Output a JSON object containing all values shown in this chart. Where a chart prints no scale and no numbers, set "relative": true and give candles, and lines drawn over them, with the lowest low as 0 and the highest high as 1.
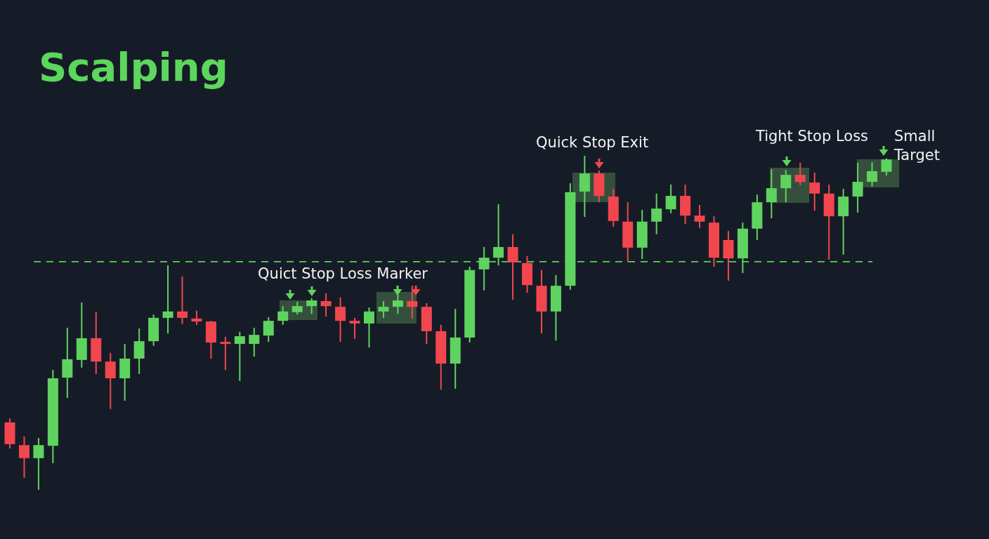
{
  "chart_data": {
    "type": "candlestick",
    "title": "Scalping",
    "relative": true,
    "categories": [
      null,
      null,
      null,
      null,
      null,
      null,
      null,
      null,
      null,
      null,
      null,
      null,
      null,
      null,
      null,
      null,
      null,
      null,
      null,
      null,
      null,
      null,
      null,
      null,
      null,
      null,
      null,
      null,
      null,
      null,
      null,
      null,
      null,
      null,
      null,
      null,
      null,
      null,
      null,
      null,
      null,
      null,
      null,
      null,
      null,
      null,
      null,
      null,
      null,
      null,
      null,
      null,
      null,
      null,
      null,
      null,
      null,
      null,
      null,
      null,
      null,
      null
    ],
    "ohlc": [
      [
        0.202,
        0.214,
        0.124,
        0.137
      ],
      [
        0.134,
        0.16,
        0.036,
        0.095
      ],
      [
        0.095,
        0.155,
        0,
        0.134
      ],
      [
        0.132,
        0.359,
        0.08,
        0.334
      ],
      [
        0.336,
        0.485,
        0.275,
        0.391
      ],
      [
        0.389,
        0.561,
        0.366,
        0.454
      ],
      [
        0.454,
        0.532,
        0.347,
        0.384
      ],
      [
        0.384,
        0.41,
        0.242,
        0.334
      ],
      [
        0.334,
        0.437,
        0.267,
        0.393
      ],
      [
        0.393,
        0.483,
        0.347,
        0.445
      ],
      [
        0.445,
        0.525,
        0.431,
        0.515
      ],
      [
        0.515,
        0.672,
        0.468,
        0.534
      ],
      [
        0.534,
        0.639,
        0.496,
        0.515
      ],
      [
        0.513,
        0.536,
        0.494,
        0.504
      ],
      [
        0.504,
        0.506,
        0.393,
        0.441
      ],
      [
        0.443,
        0.458,
        0.359,
        0.437
      ],
      [
        0.437,
        0.473,
        0.326,
        0.46
      ],
      [
        0.437,
        0.485,
        0.399,
        0.464
      ],
      [
        0.462,
        0.517,
        0.443,
        0.506
      ],
      [
        0.506,
        0.55,
        0.494,
        0.534
      ],
      [
        0.532,
        0.563,
        0.525,
        0.55
      ],
      [
        0.55,
        0.574,
        0.527,
        0.567
      ],
      [
        0.565,
        0.588,
        0.519,
        0.55
      ],
      [
        0.548,
        0.576,
        0.443,
        0.506
      ],
      [
        0.506,
        0.515,
        0.452,
        0.498
      ],
      [
        0.498,
        0.546,
        0.426,
        0.534
      ],
      [
        0.534,
        0.565,
        0.515,
        0.548
      ],
      [
        0.548,
        0.584,
        0.527,
        0.567
      ],
      [
        0.565,
        0.611,
        0.513,
        0.548
      ],
      [
        0.548,
        0.559,
        0.437,
        0.475
      ],
      [
        0.475,
        0.494,
        0.3,
        0.378
      ],
      [
        0.378,
        0.542,
        0.303,
        0.456
      ],
      [
        0.456,
        0.668,
        0.441,
        0.658
      ],
      [
        0.66,
        0.727,
        0.597,
        0.695
      ],
      [
        0.695,
        0.855,
        0.672,
        0.727
      ],
      [
        0.727,
        0.765,
        0.569,
        0.681
      ],
      [
        0.679,
        0.7,
        0.59,
        0.613
      ],
      [
        0.611,
        0.658,
        0.468,
        0.534
      ],
      [
        0.534,
        0.643,
        0.447,
        0.611
      ],
      [
        0.611,
        0.918,
        0.599,
        0.891
      ],
      [
        0.893,
        1,
        0.817,
        0.947
      ],
      [
        0.947,
        0.956,
        0.861,
        0.88
      ],
      [
        0.878,
        0.901,
        0.788,
        0.805
      ],
      [
        0.803,
        0.861,
        0.683,
        0.725
      ],
      [
        0.725,
        0.838,
        0.691,
        0.803
      ],
      [
        0.803,
        0.887,
        0.765,
        0.842
      ],
      [
        0.84,
        0.914,
        0.828,
        0.88
      ],
      [
        0.88,
        0.914,
        0.796,
        0.821
      ],
      [
        0.821,
        0.853,
        0.784,
        0.803
      ],
      [
        0.8,
        0.819,
        0.668,
        0.695
      ],
      [
        0.748,
        0.775,
        0.626,
        0.693
      ],
      [
        0.693,
        0.8,
        0.649,
        0.782
      ],
      [
        0.782,
        0.884,
        0.748,
        0.861
      ],
      [
        0.861,
        0.96,
        0.813,
        0.903
      ],
      [
        0.903,
        0.958,
        0.861,
        0.943
      ],
      [
        0.943,
        0.979,
        0.912,
        0.922
      ],
      [
        0.92,
        0.95,
        0.836,
        0.887
      ],
      [
        0.887,
        0.914,
        0.689,
        0.819
      ],
      [
        0.819,
        0.901,
        0.704,
        0.878
      ],
      [
        0.878,
        0.979,
        0.83,
        0.922
      ],
      [
        0.922,
        0.981,
        0.908,
        0.954
      ],
      [
        0.952,
        0.992,
        0.941,
        0.989
      ]
    ],
    "colors": [
      "#f2464f",
      "#f2464f",
      "#5fd35f",
      "#5fd35f",
      "#5fd35f",
      "#5fd35f",
      "#f2464f",
      "#f2464f",
      "#5fd35f",
      "#5fd35f",
      "#5fd35f",
      "#5fd35f",
      "#f2464f",
      "#f2464f",
      "#f2464f",
      "#f2464f",
      "#5fd35f",
      "#5fd35f",
      "#5fd35f",
      "#5fd35f",
      "#5fd35f",
      "#5fd35f",
      "#f2464f",
      "#f2464f",
      "#f2464f",
      "#5fd35f",
      "#5fd35f",
      "#5fd35f",
      "#f2464f",
      "#f2464f",
      "#f2464f",
      "#5fd35f",
      "#5fd35f",
      "#5fd35f",
      "#5fd35f",
      "#f2464f",
      "#f2464f",
      "#f2464f",
      "#5fd35f",
      "#5fd35f",
      "#5fd35f",
      "#f2464f",
      "#f2464f",
      "#f2464f",
      "#5fd35f",
      "#5fd35f",
      "#5fd35f",
      "#f2464f",
      "#f2464f",
      "#f2464f",
      "#f2464f",
      "#5fd35f",
      "#5fd35f",
      "#5fd35f",
      "#5fd35f",
      "#f2464f",
      "#f2464f",
      "#f2464f",
      "#5fd35f",
      "#5fd35f",
      "#5fd35f",
      "#5fd35f"
    ],
    "ref_lines": [
      {
        "axis": "y",
        "value": 0.683,
        "color": "#5ccf5c",
        "line_style": "dashed"
      }
    ],
    "annotations": [
      "Quict Stop Loss Marker",
      "Quick Stop Exit",
      "Tight Stop Loss",
      "Small Target"
    ]
  }
}
